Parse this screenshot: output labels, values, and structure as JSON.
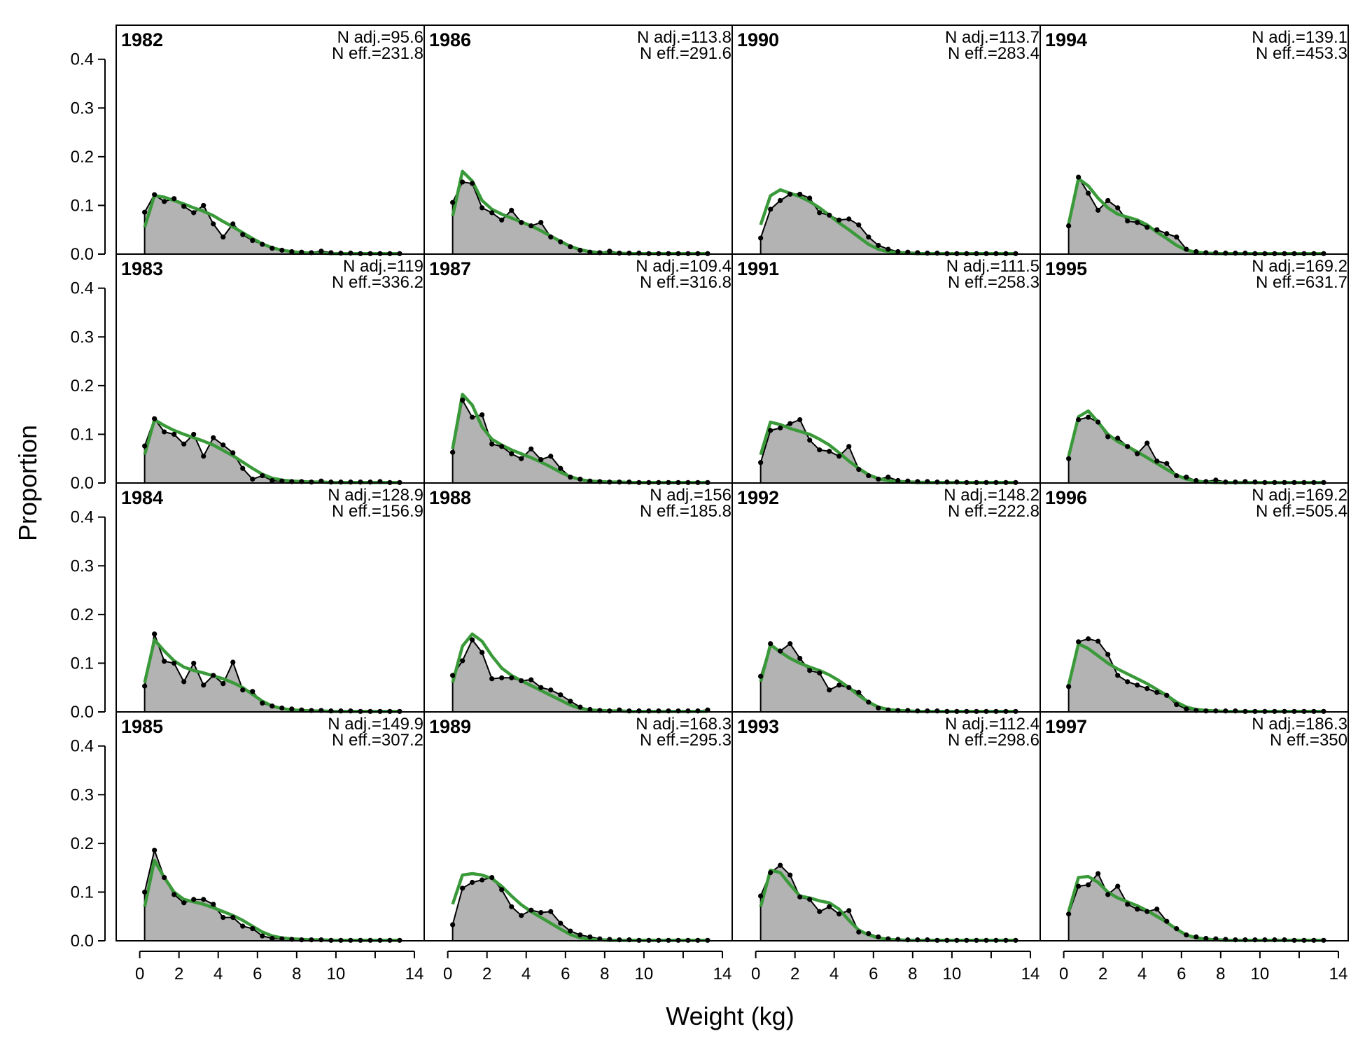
{
  "figure": {
    "ylabel": "Proportion",
    "xlabel": "Weight (kg)",
    "y_ticks": [
      "0.0",
      "0.1",
      "0.2",
      "0.3",
      "0.4"
    ],
    "x_ticks": [
      "0",
      "2",
      "4",
      "6",
      "8",
      "10",
      "14"
    ]
  },
  "colors": {
    "fill": "#b3b3b3",
    "observed": "#000000",
    "expected": "#3a9a3a",
    "zero_line": "#c0c0c0",
    "frame": "#000000"
  },
  "chart_data": {
    "type": "area",
    "ylim": [
      0,
      0.47
    ],
    "xlim": [
      -1.2,
      14.5
    ],
    "x": [
      0.25,
      0.75,
      1.25,
      1.75,
      2.25,
      2.75,
      3.25,
      3.75,
      4.25,
      4.75,
      5.25,
      5.75,
      6.25,
      6.75,
      7.25,
      7.75,
      8.25,
      8.75,
      9.25,
      9.75,
      10.25,
      10.75,
      11.25,
      11.75,
      12.25,
      12.75,
      13.25
    ],
    "series_names": [
      "observed",
      "expected"
    ],
    "panels": [
      {
        "year": "1982",
        "n_adj": "N adj.=95.6",
        "n_eff": "N eff.=231.8",
        "observed": [
          0.086,
          0.122,
          0.108,
          0.114,
          0.098,
          0.085,
          0.1,
          0.062,
          0.035,
          0.062,
          0.04,
          0.028,
          0.02,
          0.012,
          0.008,
          0.005,
          0.004,
          0.003,
          0.006,
          0.003,
          0.002,
          0.002,
          0.001,
          0.001,
          0.001,
          0.001,
          0.001
        ],
        "expected": [
          0.055,
          0.12,
          0.117,
          0.11,
          0.103,
          0.095,
          0.088,
          0.079,
          0.067,
          0.056,
          0.044,
          0.032,
          0.021,
          0.013,
          0.008,
          0.005,
          0.003,
          0.002,
          0.002,
          0.001,
          0.001,
          0.001,
          0.001,
          0.001,
          0.001,
          0.001,
          0.001
        ]
      },
      {
        "year": "1983",
        "n_adj": "N adj.=119",
        "n_eff": "N eff.=336.2",
        "observed": [
          0.076,
          0.132,
          0.105,
          0.1,
          0.08,
          0.1,
          0.055,
          0.093,
          0.078,
          0.062,
          0.03,
          0.008,
          0.015,
          0.005,
          0.004,
          0.003,
          0.003,
          0.002,
          0.004,
          0.002,
          0.002,
          0.002,
          0.002,
          0.002,
          0.003,
          0.001,
          0.001
        ],
        "expected": [
          0.058,
          0.13,
          0.118,
          0.108,
          0.1,
          0.093,
          0.086,
          0.078,
          0.067,
          0.056,
          0.043,
          0.03,
          0.018,
          0.01,
          0.006,
          0.004,
          0.003,
          0.002,
          0.002,
          0.001,
          0.001,
          0.001,
          0.001,
          0.001,
          0.001,
          0.001,
          0.001
        ]
      },
      {
        "year": "1984",
        "n_adj": "N adj.=128.9",
        "n_eff": "N eff.=156.9",
        "observed": [
          0.053,
          0.16,
          0.104,
          0.1,
          0.062,
          0.1,
          0.055,
          0.075,
          0.058,
          0.102,
          0.045,
          0.042,
          0.018,
          0.012,
          0.008,
          0.006,
          0.004,
          0.003,
          0.003,
          0.002,
          0.002,
          0.002,
          0.001,
          0.001,
          0.001,
          0.001,
          0.001
        ],
        "expected": [
          0.06,
          0.148,
          0.125,
          0.105,
          0.092,
          0.085,
          0.08,
          0.074,
          0.068,
          0.06,
          0.05,
          0.036,
          0.022,
          0.012,
          0.007,
          0.004,
          0.003,
          0.002,
          0.002,
          0.001,
          0.001,
          0.001,
          0.001,
          0.001,
          0.001,
          0.001,
          0.001
        ]
      },
      {
        "year": "1985",
        "n_adj": "N adj.=149.9",
        "n_eff": "N eff.=307.2",
        "observed": [
          0.1,
          0.186,
          0.13,
          0.095,
          0.078,
          0.085,
          0.085,
          0.075,
          0.048,
          0.048,
          0.03,
          0.025,
          0.01,
          0.005,
          0.004,
          0.003,
          0.002,
          0.002,
          0.002,
          0.001,
          0.001,
          0.001,
          0.001,
          0.001,
          0.001,
          0.001,
          0.001
        ],
        "expected": [
          0.07,
          0.165,
          0.13,
          0.1,
          0.085,
          0.08,
          0.075,
          0.068,
          0.06,
          0.052,
          0.042,
          0.03,
          0.018,
          0.01,
          0.006,
          0.004,
          0.003,
          0.002,
          0.002,
          0.001,
          0.001,
          0.001,
          0.001,
          0.001,
          0.001,
          0.001,
          0.001
        ]
      },
      {
        "year": "1986",
        "n_adj": "N adj.=113.8",
        "n_eff": "N eff.=291.6",
        "observed": [
          0.106,
          0.148,
          0.145,
          0.095,
          0.085,
          0.07,
          0.09,
          0.065,
          0.058,
          0.065,
          0.035,
          0.025,
          0.015,
          0.008,
          0.004,
          0.003,
          0.006,
          0.002,
          0.002,
          0.002,
          0.001,
          0.001,
          0.001,
          0.001,
          0.001,
          0.001,
          0.001
        ],
        "expected": [
          0.078,
          0.17,
          0.15,
          0.11,
          0.092,
          0.082,
          0.074,
          0.066,
          0.058,
          0.048,
          0.037,
          0.026,
          0.016,
          0.009,
          0.005,
          0.003,
          0.002,
          0.002,
          0.001,
          0.001,
          0.001,
          0.001,
          0.001,
          0.001,
          0.001,
          0.001,
          0.001
        ]
      },
      {
        "year": "1987",
        "n_adj": "N adj.=109.4",
        "n_eff": "N eff.=316.8",
        "observed": [
          0.063,
          0.17,
          0.135,
          0.14,
          0.08,
          0.075,
          0.06,
          0.05,
          0.07,
          0.048,
          0.055,
          0.03,
          0.012,
          0.008,
          0.004,
          0.003,
          0.002,
          0.002,
          0.002,
          0.001,
          0.001,
          0.001,
          0.001,
          0.001,
          0.001,
          0.001,
          0.001
        ],
        "expected": [
          0.07,
          0.182,
          0.16,
          0.115,
          0.09,
          0.078,
          0.068,
          0.06,
          0.052,
          0.043,
          0.033,
          0.022,
          0.013,
          0.007,
          0.004,
          0.003,
          0.002,
          0.002,
          0.001,
          0.001,
          0.001,
          0.001,
          0.001,
          0.001,
          0.001,
          0.001,
          0.001
        ]
      },
      {
        "year": "1988",
        "n_adj": "N adj.=156",
        "n_eff": "N eff.=185.8",
        "observed": [
          0.075,
          0.105,
          0.148,
          0.122,
          0.068,
          0.07,
          0.07,
          0.064,
          0.066,
          0.05,
          0.045,
          0.035,
          0.022,
          0.01,
          0.005,
          0.003,
          0.002,
          0.004,
          0.002,
          0.002,
          0.002,
          0.002,
          0.002,
          0.002,
          0.002,
          0.002,
          0.004
        ],
        "expected": [
          0.06,
          0.135,
          0.16,
          0.145,
          0.115,
          0.09,
          0.075,
          0.064,
          0.054,
          0.044,
          0.034,
          0.024,
          0.014,
          0.007,
          0.004,
          0.003,
          0.002,
          0.002,
          0.001,
          0.001,
          0.001,
          0.001,
          0.001,
          0.001,
          0.001,
          0.001,
          0.001
        ]
      },
      {
        "year": "1989",
        "n_adj": "N adj.=168.3",
        "n_eff": "N eff.=295.3",
        "observed": [
          0.033,
          0.108,
          0.12,
          0.125,
          0.13,
          0.105,
          0.07,
          0.052,
          0.063,
          0.058,
          0.06,
          0.036,
          0.02,
          0.012,
          0.008,
          0.004,
          0.003,
          0.002,
          0.002,
          0.001,
          0.001,
          0.001,
          0.001,
          0.001,
          0.001,
          0.001,
          0.001
        ],
        "expected": [
          0.075,
          0.135,
          0.138,
          0.135,
          0.128,
          0.112,
          0.092,
          0.074,
          0.06,
          0.048,
          0.036,
          0.024,
          0.013,
          0.006,
          0.003,
          0.002,
          0.001,
          0.001,
          0.001,
          0.001,
          0.001,
          0.001,
          0.001,
          0.001,
          0.001,
          0.001,
          0.001
        ]
      },
      {
        "year": "1990",
        "n_adj": "N adj.=113.7",
        "n_eff": "N eff.=283.4",
        "observed": [
          0.033,
          0.092,
          0.11,
          0.123,
          0.123,
          0.115,
          0.085,
          0.08,
          0.07,
          0.072,
          0.06,
          0.035,
          0.018,
          0.01,
          0.005,
          0.004,
          0.003,
          0.002,
          0.002,
          0.001,
          0.001,
          0.001,
          0.001,
          0.001,
          0.001,
          0.001,
          0.001
        ],
        "expected": [
          0.06,
          0.12,
          0.132,
          0.125,
          0.118,
          0.108,
          0.095,
          0.08,
          0.064,
          0.05,
          0.035,
          0.02,
          0.01,
          0.005,
          0.003,
          0.002,
          0.001,
          0.001,
          0.001,
          0.001,
          0.001,
          0.001,
          0.001,
          0.001,
          0.001,
          0.001,
          0.001
        ]
      },
      {
        "year": "1991",
        "n_adj": "N adj.=111.5",
        "n_eff": "N eff.=258.3",
        "observed": [
          0.042,
          0.108,
          0.113,
          0.122,
          0.13,
          0.088,
          0.068,
          0.065,
          0.055,
          0.075,
          0.028,
          0.015,
          0.008,
          0.012,
          0.005,
          0.004,
          0.003,
          0.003,
          0.002,
          0.002,
          0.002,
          0.001,
          0.001,
          0.001,
          0.001,
          0.001,
          0.001
        ],
        "expected": [
          0.058,
          0.125,
          0.12,
          0.112,
          0.106,
          0.1,
          0.09,
          0.078,
          0.062,
          0.045,
          0.03,
          0.017,
          0.009,
          0.005,
          0.003,
          0.002,
          0.001,
          0.001,
          0.001,
          0.001,
          0.001,
          0.001,
          0.001,
          0.001,
          0.001,
          0.001,
          0.001
        ]
      },
      {
        "year": "1992",
        "n_adj": "N adj.=148.2",
        "n_eff": "N eff.=222.8",
        "observed": [
          0.073,
          0.14,
          0.125,
          0.14,
          0.11,
          0.085,
          0.08,
          0.045,
          0.055,
          0.05,
          0.04,
          0.02,
          0.008,
          0.004,
          0.003,
          0.003,
          0.002,
          0.002,
          0.002,
          0.001,
          0.001,
          0.001,
          0.001,
          0.001,
          0.001,
          0.001,
          0.001
        ],
        "expected": [
          0.062,
          0.138,
          0.123,
          0.11,
          0.1,
          0.092,
          0.085,
          0.076,
          0.064,
          0.05,
          0.034,
          0.02,
          0.01,
          0.005,
          0.003,
          0.002,
          0.001,
          0.001,
          0.001,
          0.001,
          0.001,
          0.001,
          0.001,
          0.001,
          0.001,
          0.001,
          0.001
        ]
      },
      {
        "year": "1993",
        "n_adj": "N adj.=112.4",
        "n_eff": "N eff.=298.6",
        "observed": [
          0.092,
          0.14,
          0.155,
          0.135,
          0.09,
          0.085,
          0.06,
          0.07,
          0.055,
          0.062,
          0.018,
          0.015,
          0.008,
          0.004,
          0.003,
          0.002,
          0.002,
          0.002,
          0.001,
          0.001,
          0.001,
          0.001,
          0.001,
          0.001,
          0.001,
          0.001,
          0.001
        ],
        "expected": [
          0.07,
          0.145,
          0.14,
          0.115,
          0.092,
          0.088,
          0.082,
          0.078,
          0.065,
          0.042,
          0.022,
          0.012,
          0.006,
          0.003,
          0.002,
          0.001,
          0.001,
          0.001,
          0.001,
          0.001,
          0.001,
          0.001,
          0.001,
          0.001,
          0.001,
          0.001,
          0.001
        ]
      },
      {
        "year": "1994",
        "n_adj": "N adj.=139.1",
        "n_eff": "N eff.=453.3",
        "observed": [
          0.058,
          0.158,
          0.125,
          0.09,
          0.11,
          0.095,
          0.068,
          0.065,
          0.055,
          0.05,
          0.042,
          0.035,
          0.01,
          0.005,
          0.003,
          0.003,
          0.002,
          0.002,
          0.002,
          0.001,
          0.001,
          0.001,
          0.001,
          0.001,
          0.001,
          0.001,
          0.001
        ],
        "expected": [
          0.062,
          0.155,
          0.14,
          0.115,
          0.095,
          0.082,
          0.076,
          0.07,
          0.06,
          0.045,
          0.032,
          0.018,
          0.008,
          0.004,
          0.002,
          0.001,
          0.001,
          0.001,
          0.001,
          0.001,
          0.001,
          0.001,
          0.001,
          0.001,
          0.001,
          0.001,
          0.001
        ]
      },
      {
        "year": "1995",
        "n_adj": "N adj.=169.2",
        "n_eff": "N eff.=631.7",
        "observed": [
          0.05,
          0.13,
          0.135,
          0.125,
          0.095,
          0.092,
          0.075,
          0.06,
          0.082,
          0.045,
          0.04,
          0.015,
          0.012,
          0.005,
          0.003,
          0.006,
          0.002,
          0.002,
          0.003,
          0.002,
          0.001,
          0.001,
          0.001,
          0.001,
          0.001,
          0.001,
          0.001
        ],
        "expected": [
          0.055,
          0.136,
          0.148,
          0.125,
          0.1,
          0.085,
          0.075,
          0.064,
          0.052,
          0.04,
          0.028,
          0.016,
          0.008,
          0.004,
          0.002,
          0.001,
          0.001,
          0.001,
          0.001,
          0.001,
          0.001,
          0.001,
          0.001,
          0.001,
          0.001,
          0.001,
          0.001
        ]
      },
      {
        "year": "1996",
        "n_adj": "N adj.=169.2",
        "n_eff": "N eff.=505.4",
        "observed": [
          0.052,
          0.144,
          0.15,
          0.145,
          0.118,
          0.075,
          0.062,
          0.055,
          0.048,
          0.04,
          0.034,
          0.015,
          0.006,
          0.003,
          0.002,
          0.002,
          0.002,
          0.002,
          0.001,
          0.001,
          0.001,
          0.001,
          0.001,
          0.001,
          0.001,
          0.001,
          0.001
        ],
        "expected": [
          0.055,
          0.14,
          0.13,
          0.115,
          0.1,
          0.088,
          0.078,
          0.068,
          0.058,
          0.046,
          0.034,
          0.02,
          0.01,
          0.005,
          0.003,
          0.002,
          0.001,
          0.001,
          0.001,
          0.001,
          0.001,
          0.001,
          0.001,
          0.001,
          0.001,
          0.001,
          0.001
        ]
      },
      {
        "year": "1997",
        "n_adj": "N adj.=186.3",
        "n_eff": "N eff.=350",
        "observed": [
          0.055,
          0.112,
          0.115,
          0.138,
          0.095,
          0.112,
          0.075,
          0.065,
          0.06,
          0.065,
          0.04,
          0.025,
          0.012,
          0.008,
          0.005,
          0.004,
          0.003,
          0.002,
          0.002,
          0.002,
          0.002,
          0.002,
          0.002,
          0.001,
          0.001,
          0.001,
          0.001
        ],
        "expected": [
          0.06,
          0.13,
          0.132,
          0.12,
          0.1,
          0.088,
          0.08,
          0.072,
          0.062,
          0.05,
          0.038,
          0.024,
          0.012,
          0.006,
          0.003,
          0.002,
          0.001,
          0.001,
          0.001,
          0.001,
          0.001,
          0.001,
          0.001,
          0.001,
          0.001,
          0.001,
          0.001
        ]
      }
    ]
  }
}
